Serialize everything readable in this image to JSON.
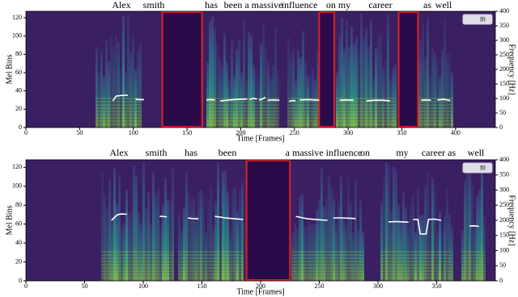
{
  "chart_data": [
    {
      "type": "line",
      "words": [
        "Alex",
        "smith",
        "has",
        "been a massive",
        "influence",
        "on my",
        "career",
        "as",
        "well"
      ],
      "xlabel": "Time [Frames]",
      "ylabel": "Mel Bins",
      "y2label": "Frequency [Hz]",
      "xlim": [
        0,
        437
      ],
      "xticks": [
        0,
        50,
        100,
        150,
        200,
        250,
        300,
        350,
        400
      ],
      "ylim": [
        0,
        127
      ],
      "yticks": [
        0,
        20,
        40,
        60,
        80,
        100,
        120
      ],
      "y2lim": [
        0,
        400
      ],
      "y2ticks": [
        0,
        50,
        100,
        150,
        200,
        250,
        300,
        350,
        400
      ],
      "highlight_ranges": [
        [
          127,
          164
        ],
        [
          273,
          287
        ],
        [
          347,
          365
        ]
      ],
      "highlight_color": "#e02020",
      "legend": "upper right",
      "x": [
        81,
        84,
        88,
        92,
        95,
        99,
        102,
        106,
        110,
        139,
        168,
        172,
        176,
        178,
        181,
        190,
        198,
        206,
        207,
        208,
        212,
        215,
        216,
        217,
        220,
        223,
        224,
        225,
        230,
        236,
        240,
        245,
        248,
        251,
        253,
        255,
        262,
        268,
        273,
        280,
        292,
        298,
        305,
        310,
        317,
        325,
        332,
        339,
        350,
        368,
        372,
        377,
        380,
        383,
        389,
        395
      ],
      "series": [
        {
          "name": "f0",
          "color": "#ffffff",
          "axis": "y2",
          "values": [
            92,
            108,
            110,
            111,
            111,
            null,
            97,
            96,
            96,
            null,
            95,
            96,
            95,
            null,
            92,
            95,
            97,
            98,
            null,
            97,
            100,
            98,
            null,
            95,
            98,
            104,
            null,
            94,
            95,
            94,
            null,
            90,
            93,
            92,
            null,
            95,
            96,
            95,
            94,
            null,
            94,
            95,
            94,
            null,
            92,
            94,
            94,
            92,
            null,
            94,
            95,
            94,
            null,
            95,
            97,
            93
          ]
        }
      ]
    },
    {
      "type": "line",
      "words": [
        "Alex",
        "smith",
        "has",
        "been",
        "a massive influence",
        "on",
        "my",
        "career as",
        "well"
      ],
      "xlabel": "Time [Frames]",
      "ylabel": "Mel Bins",
      "y2label": "Frequency [Hz]",
      "xlim": [
        0,
        400
      ],
      "xticks": [
        0,
        50,
        100,
        150,
        200,
        250,
        300,
        350
      ],
      "ylim": [
        0,
        128
      ],
      "yticks": [
        0,
        20,
        40,
        60,
        80,
        100,
        120
      ],
      "y2lim": [
        0,
        400
      ],
      "y2ticks": [
        0,
        50,
        100,
        150,
        200,
        250,
        300,
        350,
        400
      ],
      "highlight_ranges": [
        [
          188,
          225
        ]
      ],
      "highlight_color": "#e02020",
      "legend": "upper right",
      "x": [
        73,
        78,
        82,
        86,
        100,
        114,
        117,
        120,
        130,
        138,
        142,
        147,
        155,
        161,
        170,
        178,
        185,
        200,
        230,
        240,
        250,
        257,
        259,
        262,
        270,
        276,
        281,
        295,
        309,
        315,
        321,
        326,
        328,
        330,
        334,
        336,
        341,
        343,
        348,
        354,
        365,
        378,
        382,
        386
      ],
      "series": [
        {
          "name": "f0",
          "color": "#ffffff",
          "axis": "y2",
          "values": [
            200,
            219,
            221,
            220,
            null,
            213,
            213,
            211,
            null,
            208,
            206,
            205,
            null,
            213,
            208,
            205,
            203,
            null,
            213,
            205,
            202,
            200,
            null,
            208,
            208,
            207,
            206,
            null,
            195,
            196,
            195,
            194,
            null,
            203,
            203,
            155,
            155,
            203,
            204,
            200,
            null,
            181,
            182,
            180
          ]
        }
      ]
    }
  ]
}
